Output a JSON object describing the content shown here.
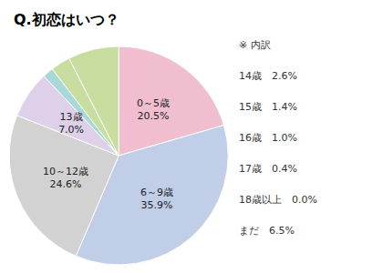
{
  "chart_data": {
    "type": "pie",
    "title": "Q.初恋はいつ？",
    "categories": [
      "0～5歳",
      "6～9歳",
      "10～12歳",
      "13歳",
      "※",
      null,
      null
    ],
    "values": [
      20.5,
      35.9,
      24.6,
      7.0,
      1.6,
      2.9,
      7.5
    ],
    "value_labels": [
      "20.5%",
      "35.9%",
      "24.6%",
      "7.0%",
      null,
      null,
      null
    ],
    "colors": [
      "#f0bece",
      "#c0cee8",
      "#d2d2d2",
      "#ddd0e8",
      "#a8d8d8",
      "#c8dda0",
      "#c8dda0"
    ],
    "annotations": [
      "※ 内訳",
      "14歳　2.6%",
      "15歳　1.4%",
      "16歳　1.0%",
      "17歳　0.4%",
      "18歳以上　0.0%",
      "まだ　6.5%"
    ]
  }
}
